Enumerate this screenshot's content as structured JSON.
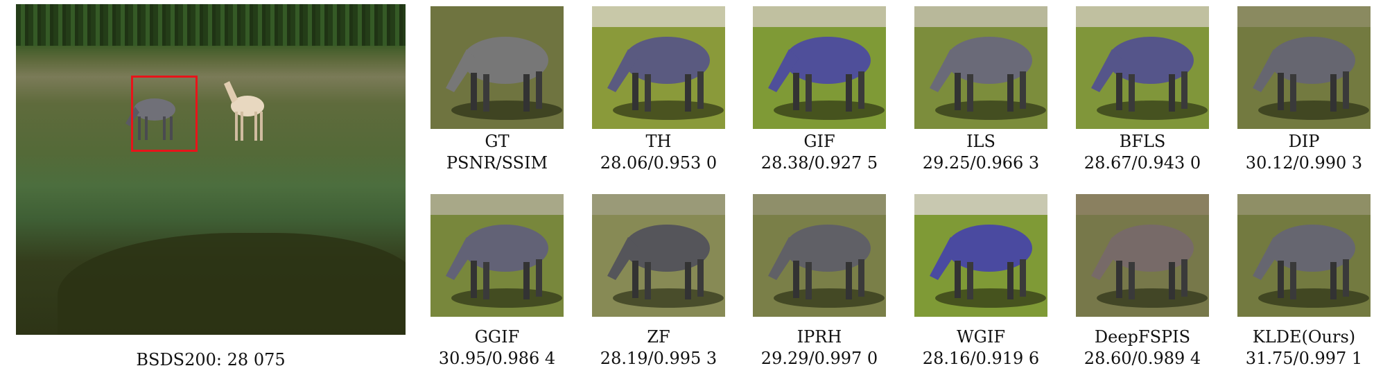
{
  "figure": {
    "main_image_caption": "BSDS200: 28 075",
    "panels": [
      {
        "method": "GT",
        "score": "PSNR/SSIM",
        "bg": "#6f7440",
        "horse": "#777777",
        "top": "#6f7440"
      },
      {
        "method": "TH",
        "score": "28.06/0.953 0",
        "bg": "#8a9a3a",
        "horse": "#5a5a80",
        "top": "#c8c8a8"
      },
      {
        "method": "GIF",
        "score": "28.38/0.927 5",
        "bg": "#7f9a36",
        "horse": "#4f4f9a",
        "top": "#c0c0a0"
      },
      {
        "method": "ILS",
        "score": "29.25/0.966 3",
        "bg": "#7c8d3c",
        "horse": "#6a6a78",
        "top": "#b8b89a"
      },
      {
        "method": "BFLS",
        "score": "28.67/0.943 0",
        "bg": "#80963a",
        "horse": "#55558a",
        "top": "#c0c0a0"
      },
      {
        "method": "DIP",
        "score": "30.12/0.990 3",
        "bg": "#737a40",
        "horse": "#666670",
        "top": "#8a8a60"
      },
      {
        "method": "GGIF",
        "score": "30.95/0.986 4",
        "bg": "#78873c",
        "horse": "#626276",
        "top": "#a8a888"
      },
      {
        "method": "ZF",
        "score": "28.19/0.995 3",
        "bg": "#878a55",
        "horse": "#55555a",
        "top": "#9a9a78"
      },
      {
        "method": "IPRH",
        "score": "29.29/0.997 0",
        "bg": "#7a7f48",
        "horse": "#606066",
        "top": "#8f8f6a"
      },
      {
        "method": "WGIF",
        "score": "28.16/0.919 6",
        "bg": "#7f9a36",
        "horse": "#4a4aa0",
        "top": "#c8c8b0"
      },
      {
        "method": "DeepFSPIS",
        "score": "28.60/0.989 4",
        "bg": "#77784a",
        "horse": "#776a68",
        "top": "#8a8060"
      },
      {
        "method": "KLDE(Ours)",
        "score": "31.75/0.997 1",
        "bg": "#737a40",
        "horse": "#666670",
        "top": "#8f8f66"
      }
    ],
    "highlight_box_color": "#e8141a"
  }
}
